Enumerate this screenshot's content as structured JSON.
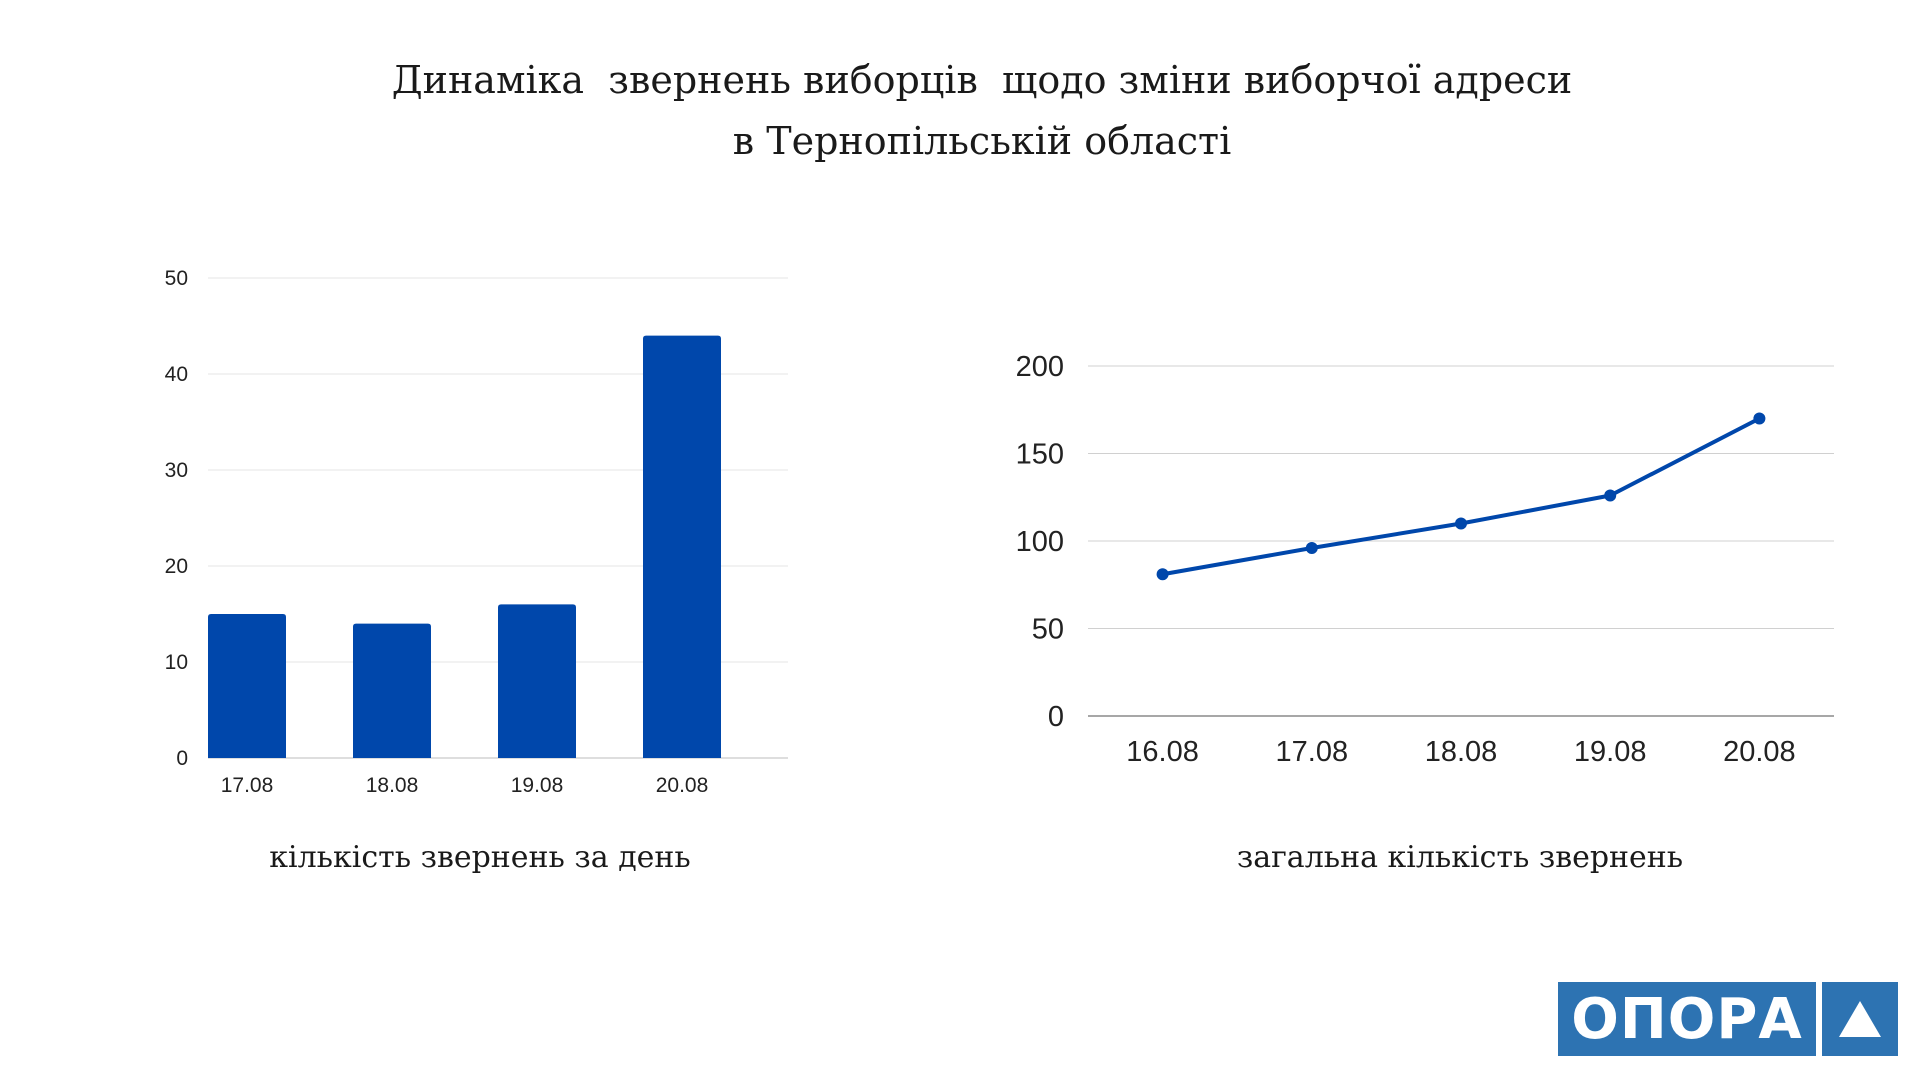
{
  "title": {
    "line1": "Динаміка  звернень виборців  щодо зміни виборчої адреси",
    "line2": "в Тернопільській області"
  },
  "logo": {
    "text": "ОПОРА",
    "icon": "triangle-icon",
    "color": "#2d73b2"
  },
  "chart_data": [
    {
      "type": "bar",
      "caption": "кількість звернень за день",
      "categories": [
        "17.08",
        "18.08",
        "19.08",
        "20.08"
      ],
      "values": [
        15,
        14,
        16,
        44
      ],
      "ylim": [
        0,
        50
      ],
      "yticks": [
        0,
        10,
        20,
        30,
        40,
        50
      ],
      "grid": true,
      "color": "#0047ab"
    },
    {
      "type": "line",
      "caption": "загальна кількість звернень",
      "categories": [
        "16.08",
        "17.08",
        "18.08",
        "19.08",
        "20.08"
      ],
      "values": [
        81,
        96,
        110,
        126,
        170
      ],
      "ylim": [
        0,
        200
      ],
      "yticks": [
        0,
        50,
        100,
        150,
        200
      ],
      "grid": true,
      "color": "#0047ab"
    }
  ]
}
